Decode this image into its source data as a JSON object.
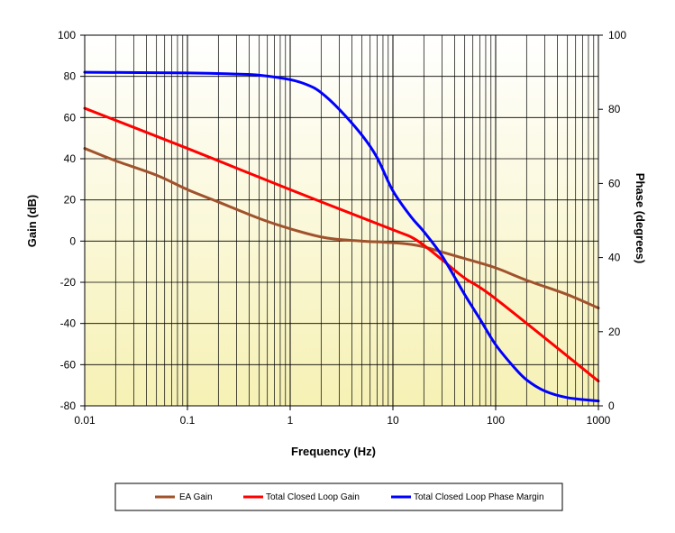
{
  "chart_data": {
    "type": "line",
    "title": "",
    "xlabel": "Frequency (Hz)",
    "ylabel": "Gain (dB)",
    "y2label": "Phase (degrees)",
    "xscale": "log",
    "xlim": [
      0.01,
      1000
    ],
    "ylim": [
      -80,
      100
    ],
    "y2lim": [
      0,
      100
    ],
    "grid": true,
    "legend_position": "bottom",
    "x_tick_labels": [
      "0.01",
      "0.1",
      "1",
      "10",
      "100",
      "1000"
    ],
    "y_tick_labels": [
      "100",
      "80",
      "60",
      "40",
      "20",
      "0",
      "-20",
      "-40",
      "-60",
      "-80"
    ],
    "y2_tick_labels": [
      "100",
      "80",
      "60",
      "40",
      "20",
      "0"
    ],
    "series": [
      {
        "name": "EA Gain",
        "color": "#a0522d",
        "axis": "left",
        "x": [
          0.01,
          0.02,
          0.05,
          0.1,
          0.2,
          0.5,
          1,
          2,
          3,
          5,
          10,
          15,
          20,
          30,
          50,
          100,
          200,
          500,
          1000
        ],
        "y": [
          45,
          39,
          32,
          25,
          19,
          11,
          6,
          2,
          0.8,
          0,
          -0.8,
          -1.6,
          -2.8,
          -5.3,
          -8.5,
          -13,
          -19,
          -26,
          -32.5
        ]
      },
      {
        "name": "Total Closed  Loop Gain",
        "color": "#ff0000",
        "axis": "left",
        "x": [
          0.01,
          0.1,
          1,
          10,
          15,
          20,
          30,
          50,
          100,
          1000
        ],
        "y": [
          64.5,
          45,
          25,
          5.5,
          2,
          -2,
          -9,
          -18,
          -28,
          -68
        ]
      },
      {
        "name": "Total Closed Loop Phase Margin",
        "color": "#0000ff",
        "axis": "right",
        "x": [
          0.01,
          0.1,
          0.3,
          0.5,
          1,
          1.5,
          2,
          3,
          5,
          7,
          10,
          15,
          20,
          30,
          50,
          70,
          100,
          150,
          200,
          300,
          500,
          1000
        ],
        "y": [
          90,
          89.8,
          89.5,
          89.2,
          88,
          86.5,
          84.5,
          80,
          73,
          67,
          58,
          51,
          47,
          40.5,
          30,
          23.5,
          16.5,
          10.5,
          7,
          4,
          2.2,
          1.3
        ]
      }
    ]
  }
}
